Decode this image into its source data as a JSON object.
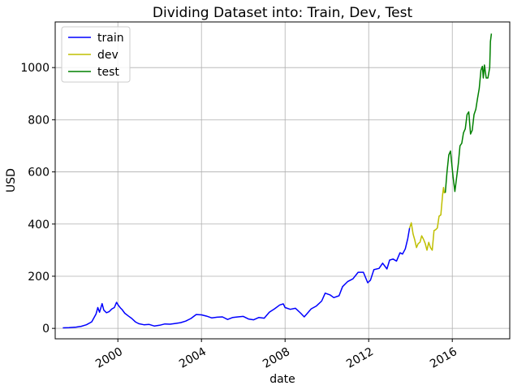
{
  "chart_data": {
    "type": "line",
    "title": "Dividing Dataset into: Train, Dev, Test",
    "xlabel": "date",
    "ylabel": "USD",
    "xlim": [
      "1997-01-01",
      "2018-10-01"
    ],
    "ylim": [
      -40,
      1175
    ],
    "x_ticks": [
      "2000",
      "2004",
      "2008",
      "2012",
      "2016"
    ],
    "x_tick_dates": [
      "2000-01-01",
      "2004-01-01",
      "2008-01-01",
      "2012-01-01",
      "2016-01-01"
    ],
    "y_ticks": [
      0,
      200,
      400,
      600,
      800,
      1000
    ],
    "grid": true,
    "legend_position": "top-left",
    "series": [
      {
        "name": "train",
        "color": "#0000ff",
        "points": [
          [
            "1997-05-15",
            2
          ],
          [
            "1997-09-01",
            3
          ],
          [
            "1998-01-01",
            5
          ],
          [
            "1998-04-01",
            8
          ],
          [
            "1998-07-01",
            14
          ],
          [
            "1998-10-01",
            25
          ],
          [
            "1998-12-15",
            55
          ],
          [
            "1999-01-15",
            80
          ],
          [
            "1999-02-15",
            62
          ],
          [
            "1999-04-01",
            95
          ],
          [
            "1999-05-01",
            70
          ],
          [
            "1999-06-15",
            60
          ],
          [
            "1999-08-01",
            64
          ],
          [
            "1999-09-15",
            74
          ],
          [
            "1999-11-01",
            80
          ],
          [
            "1999-12-10",
            100
          ],
          [
            "2000-01-05",
            90
          ],
          [
            "2000-02-15",
            78
          ],
          [
            "2000-03-15",
            72
          ],
          [
            "2000-05-01",
            58
          ],
          [
            "2000-07-01",
            48
          ],
          [
            "2000-09-01",
            38
          ],
          [
            "2000-11-01",
            25
          ],
          [
            "2001-01-01",
            18
          ],
          [
            "2001-04-01",
            14
          ],
          [
            "2001-07-01",
            15
          ],
          [
            "2001-10-01",
            9
          ],
          [
            "2002-01-01",
            12
          ],
          [
            "2002-04-01",
            17
          ],
          [
            "2002-07-01",
            16
          ],
          [
            "2002-10-01",
            19
          ],
          [
            "2003-01-01",
            22
          ],
          [
            "2003-04-01",
            28
          ],
          [
            "2003-07-01",
            38
          ],
          [
            "2003-10-01",
            53
          ],
          [
            "2004-01-01",
            52
          ],
          [
            "2004-04-01",
            47
          ],
          [
            "2004-07-01",
            40
          ],
          [
            "2004-10-01",
            43
          ],
          [
            "2005-01-01",
            44
          ],
          [
            "2005-04-01",
            34
          ],
          [
            "2005-07-01",
            42
          ],
          [
            "2005-10-01",
            44
          ],
          [
            "2006-01-01",
            46
          ],
          [
            "2006-04-01",
            36
          ],
          [
            "2006-07-01",
            33
          ],
          [
            "2006-10-01",
            42
          ],
          [
            "2007-01-01",
            39
          ],
          [
            "2007-04-01",
            62
          ],
          [
            "2007-07-01",
            75
          ],
          [
            "2007-10-01",
            90
          ],
          [
            "2007-12-01",
            94
          ],
          [
            "2008-01-01",
            80
          ],
          [
            "2008-04-01",
            73
          ],
          [
            "2008-07-01",
            77
          ],
          [
            "2008-10-01",
            58
          ],
          [
            "2008-12-01",
            44
          ],
          [
            "2009-01-01",
            52
          ],
          [
            "2009-04-01",
            75
          ],
          [
            "2009-07-01",
            86
          ],
          [
            "2009-10-01",
            105
          ],
          [
            "2009-12-01",
            135
          ],
          [
            "2010-03-01",
            128
          ],
          [
            "2010-05-01",
            118
          ],
          [
            "2010-08-01",
            125
          ],
          [
            "2010-10-01",
            160
          ],
          [
            "2011-01-01",
            180
          ],
          [
            "2011-04-01",
            190
          ],
          [
            "2011-07-01",
            215
          ],
          [
            "2011-10-01",
            215
          ],
          [
            "2011-12-15",
            175
          ],
          [
            "2012-02-01",
            185
          ],
          [
            "2012-04-01",
            225
          ],
          [
            "2012-07-01",
            230
          ],
          [
            "2012-09-01",
            250
          ],
          [
            "2012-11-15",
            228
          ],
          [
            "2013-01-01",
            262
          ],
          [
            "2013-03-01",
            266
          ],
          [
            "2013-05-01",
            258
          ],
          [
            "2013-07-01",
            290
          ],
          [
            "2013-08-15",
            285
          ],
          [
            "2013-10-01",
            305
          ],
          [
            "2013-11-15",
            345
          ],
          [
            "2013-12-15",
            385
          ]
        ]
      },
      {
        "name": "dev",
        "color": "#bfbf00",
        "points": [
          [
            "2013-12-15",
            385
          ],
          [
            "2014-01-15",
            405
          ],
          [
            "2014-02-15",
            362
          ],
          [
            "2014-03-15",
            340
          ],
          [
            "2014-04-15",
            310
          ],
          [
            "2014-05-15",
            325
          ],
          [
            "2014-06-15",
            330
          ],
          [
            "2014-07-15",
            355
          ],
          [
            "2014-08-15",
            342
          ],
          [
            "2014-09-15",
            325
          ],
          [
            "2014-10-15",
            300
          ],
          [
            "2014-11-15",
            330
          ],
          [
            "2014-12-15",
            310
          ],
          [
            "2015-01-15",
            300
          ],
          [
            "2015-02-15",
            375
          ],
          [
            "2015-03-15",
            378
          ],
          [
            "2015-04-15",
            385
          ],
          [
            "2015-05-15",
            430
          ],
          [
            "2015-06-15",
            435
          ],
          [
            "2015-07-15",
            510
          ],
          [
            "2015-08-01",
            540
          ],
          [
            "2015-08-15",
            520
          ],
          [
            "2015-09-01",
            520
          ]
        ]
      },
      {
        "name": "test",
        "color": "#008000",
        "points": [
          [
            "2015-09-01",
            520
          ],
          [
            "2015-10-01",
            600
          ],
          [
            "2015-11-01",
            665
          ],
          [
            "2015-12-01",
            680
          ],
          [
            "2016-01-15",
            580
          ],
          [
            "2016-02-15",
            525
          ],
          [
            "2016-03-15",
            575
          ],
          [
            "2016-04-15",
            630
          ],
          [
            "2016-05-15",
            700
          ],
          [
            "2016-06-15",
            710
          ],
          [
            "2016-07-15",
            750
          ],
          [
            "2016-08-15",
            765
          ],
          [
            "2016-09-15",
            820
          ],
          [
            "2016-10-15",
            830
          ],
          [
            "2016-11-15",
            745
          ],
          [
            "2016-12-15",
            760
          ],
          [
            "2017-01-15",
            820
          ],
          [
            "2017-02-15",
            840
          ],
          [
            "2017-03-15",
            880
          ],
          [
            "2017-04-15",
            920
          ],
          [
            "2017-05-15",
            990
          ],
          [
            "2017-06-10",
            1005
          ],
          [
            "2017-06-25",
            960
          ],
          [
            "2017-07-15",
            1010
          ],
          [
            "2017-08-15",
            960
          ],
          [
            "2017-09-15",
            960
          ],
          [
            "2017-10-15",
            1000
          ],
          [
            "2017-10-28",
            1100
          ],
          [
            "2017-11-15",
            1130
          ]
        ]
      }
    ]
  }
}
